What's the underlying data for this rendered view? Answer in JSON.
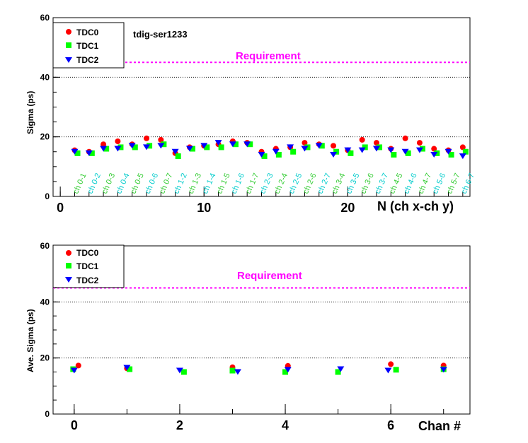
{
  "colors": {
    "tdc0": "#ff0000",
    "tdc1": "#00ff00",
    "tdc2": "#0000ff",
    "requirement": "#ff00ff",
    "channel_label_green": "#33cc33",
    "channel_label_cyan": "#00cccc"
  },
  "chart_data": [
    {
      "type": "scatter",
      "title": "tdig-ser1233",
      "xlabel": "N (ch x-ch y)",
      "ylabel": "Sigma (ps)",
      "xlim": [
        -0.5,
        28.5
      ],
      "ylim": [
        0,
        60
      ],
      "x_ticks": [
        0,
        10,
        20
      ],
      "y_ticks": [
        0,
        20,
        40,
        60
      ],
      "grid": "horizontal dotted",
      "legend_position": "top-left",
      "requirement": {
        "label": "Requirement",
        "value": 45
      },
      "channel_labels": [
        "ch 0-1",
        "ch 0-2",
        "ch 0-3",
        "ch 0-4",
        "ch 0-5",
        "ch 0-6",
        "ch 0-7",
        "ch 1-2",
        "ch 1-3",
        "ch 1-4",
        "ch 1-5",
        "ch 1-6",
        "ch 1-7",
        "ch 2-3",
        "ch 2-4",
        "ch 2-5",
        "ch 2-6",
        "ch 2-7",
        "ch 3-4",
        "ch 3-5",
        "ch 3-6",
        "ch 3-7",
        "ch 4-5",
        "ch 4-6",
        "ch 4-7",
        "ch 5-6",
        "ch 5-7",
        "ch 6-7"
      ],
      "channel_x": [
        1,
        2,
        3,
        4,
        5,
        6,
        7,
        8,
        9,
        10,
        11,
        12,
        13,
        14,
        15,
        16,
        17,
        18,
        19,
        20,
        21,
        22,
        23,
        24,
        25,
        26,
        27,
        28
      ],
      "series": [
        {
          "name": "TDC0",
          "marker": "circle",
          "x": [
            1,
            2,
            3,
            4,
            5,
            6,
            7,
            8,
            9,
            10,
            11,
            12,
            13,
            14,
            15,
            16,
            17,
            18,
            19,
            20,
            21,
            22,
            23,
            24,
            25,
            26,
            27,
            28
          ],
          "values": [
            15.5,
            15.0,
            17.5,
            18.5,
            17.5,
            19.5,
            19.0,
            14.5,
            16.5,
            17.0,
            17.5,
            18.5,
            18.0,
            15.0,
            16.0,
            16.5,
            18.0,
            17.5,
            17.0,
            15.5,
            19.0,
            18.0,
            16.0,
            19.5,
            18.0,
            16.0,
            15.5,
            16.5
          ]
        },
        {
          "name": "TDC1",
          "marker": "square",
          "x": [
            1.2,
            2.2,
            3.2,
            4.2,
            5.2,
            6.2,
            7.2,
            8.2,
            9.2,
            10.2,
            11.2,
            12.2,
            13.2,
            14.2,
            15.2,
            16.2,
            17.2,
            18.2,
            19.2,
            20.2,
            21.2,
            22.2,
            23.2,
            24.2,
            25.2,
            26.2,
            27.2,
            28.2
          ],
          "values": [
            14.5,
            14.5,
            16.0,
            16.5,
            16.5,
            17.0,
            17.5,
            13.5,
            16.0,
            16.5,
            16.5,
            17.5,
            17.5,
            13.5,
            14.0,
            15.0,
            16.5,
            17.0,
            15.0,
            14.5,
            16.5,
            16.5,
            14.0,
            14.5,
            16.0,
            14.5,
            14.0,
            15.0
          ]
        },
        {
          "name": "TDC2",
          "marker": "triangle-down",
          "x": [
            1,
            2,
            3,
            4,
            5,
            6,
            7,
            8,
            9,
            10,
            11,
            12,
            13,
            14,
            15,
            16,
            17,
            18,
            19,
            20,
            21,
            22,
            23,
            24,
            25,
            26,
            27,
            28
          ],
          "values": [
            15.0,
            14.5,
            16.0,
            16.0,
            17.0,
            16.5,
            17.0,
            15.0,
            16.0,
            17.0,
            18.0,
            17.5,
            17.5,
            14.0,
            15.0,
            16.5,
            16.0,
            17.0,
            14.0,
            15.5,
            15.5,
            16.0,
            15.5,
            15.0,
            15.5,
            14.0,
            15.0,
            13.5
          ]
        }
      ]
    },
    {
      "type": "scatter",
      "xlabel": "Chan #",
      "ylabel": "Ave. Sigma (ps)",
      "xlim": [
        -0.4,
        7.5
      ],
      "ylim": [
        0,
        60
      ],
      "x_ticks": [
        0,
        2,
        4,
        6
      ],
      "y_ticks": [
        0,
        20,
        40,
        60
      ],
      "grid": "horizontal dotted",
      "legend_position": "top-left",
      "requirement": {
        "label": "Requirement",
        "value": 45
      },
      "series": [
        {
          "name": "TDC0",
          "marker": "circle",
          "x": [
            0.08,
            1.0,
            3.0,
            4.05,
            6.0,
            7.0
          ],
          "values": [
            17.3,
            16.3,
            16.7,
            17.2,
            17.8,
            17.3
          ]
        },
        {
          "name": "TDC1",
          "marker": "square",
          "x": [
            -0.02,
            1.05,
            2.08,
            3.0,
            4.0,
            5.0,
            6.1,
            7.0
          ],
          "values": [
            16.0,
            16.0,
            15.0,
            15.5,
            15.0,
            15.0,
            15.8,
            16.0
          ]
        },
        {
          "name": "TDC2",
          "marker": "triangle-down",
          "x": [
            0.0,
            1.0,
            2.0,
            3.1,
            4.05,
            5.05,
            5.95,
            7.0
          ],
          "values": [
            15.5,
            16.5,
            15.5,
            15.0,
            15.8,
            16.0,
            15.5,
            15.8
          ]
        }
      ]
    }
  ]
}
